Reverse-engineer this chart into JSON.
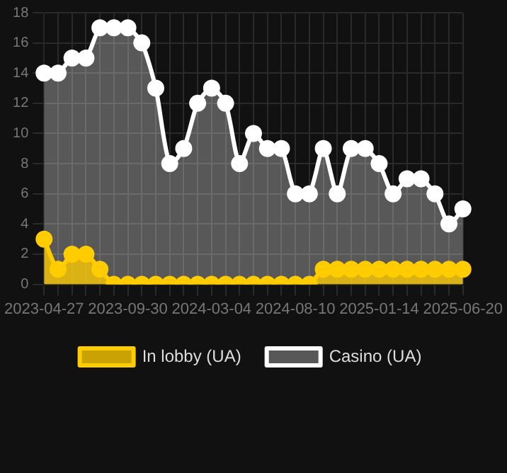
{
  "chart_data": {
    "type": "area",
    "categories": [
      "2023-04-27",
      null,
      null,
      null,
      null,
      null,
      "2023-09-30",
      null,
      null,
      null,
      null,
      null,
      "2024-03-04",
      null,
      null,
      null,
      null,
      null,
      "2024-08-10",
      null,
      null,
      null,
      null,
      null,
      "2025-01-14",
      null,
      null,
      null,
      null,
      null,
      "2025-06-20"
    ],
    "series": [
      {
        "name": "In lobby (UA)",
        "color": "#ffcc00",
        "values": [
          3,
          1,
          2,
          2,
          1,
          0,
          0,
          0,
          0,
          0,
          0,
          0,
          0,
          0,
          0,
          0,
          0,
          0,
          0,
          0,
          1,
          1,
          1,
          1,
          1,
          1,
          1,
          1,
          1,
          1,
          1
        ]
      },
      {
        "name": "Casino (UA)",
        "color": "#ffffff",
        "values": [
          14,
          14,
          15,
          15,
          17,
          17,
          17,
          16,
          13,
          8,
          9,
          12,
          13,
          12,
          8,
          10,
          9,
          9,
          6,
          6,
          9,
          6,
          9,
          9,
          8,
          6,
          7,
          7,
          6,
          4,
          5
        ]
      }
    ],
    "ylim": [
      0,
      18
    ],
    "yticks": [
      0,
      2,
      4,
      6,
      8,
      10,
      12,
      14,
      16,
      18
    ],
    "grid": true,
    "legend": "bottom",
    "marker": "circle"
  }
}
